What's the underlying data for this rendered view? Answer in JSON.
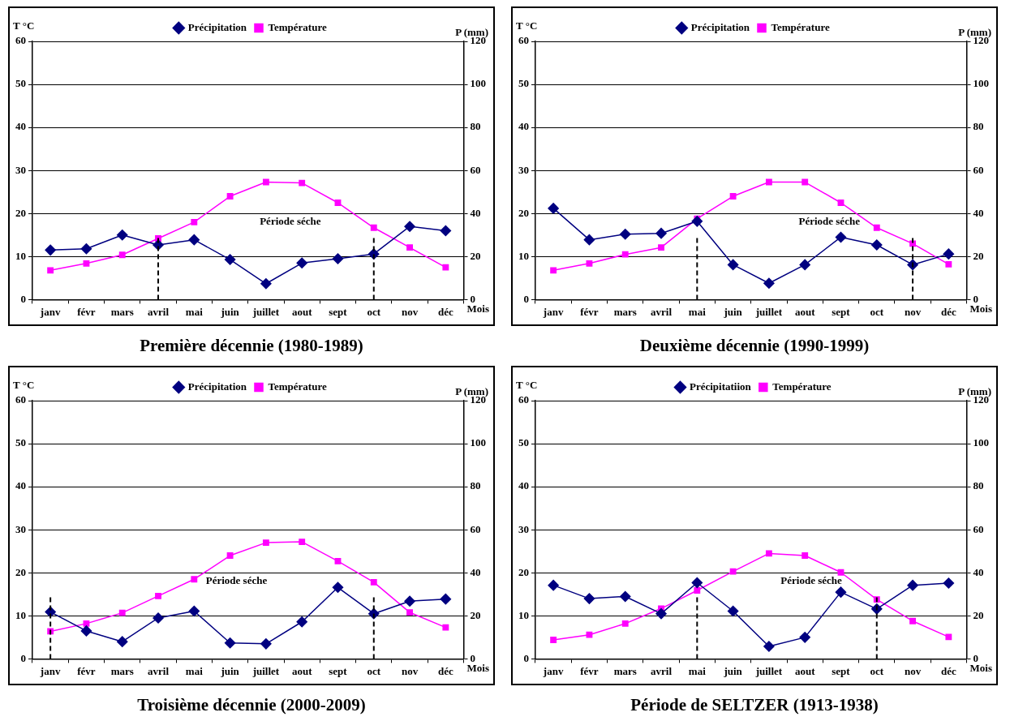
{
  "chart_data": [
    {
      "type": "line",
      "title": "Première décennie (1980-1989)",
      "xlabel": "Mois",
      "ylabel": "T °C",
      "y2label": "P (mm)",
      "categories": [
        "janv",
        "févr",
        "mars",
        "avril",
        "mai",
        "juin",
        "juillet",
        "aout",
        "sept",
        "oct",
        "nov",
        "déc"
      ],
      "series": [
        {
          "name": "Température",
          "color": "#ff00ff",
          "marker": "square",
          "values": [
            6.8,
            8.4,
            10.4,
            14.2,
            18,
            24,
            27.3,
            27.1,
            22.5,
            16.7,
            12.1,
            7.5
          ]
        },
        {
          "name": "Précipitation",
          "color": "#000080",
          "marker": "diamond",
          "axis": "y2",
          "values": [
            23,
            23.6,
            30,
            25.4,
            27.8,
            18.6,
            7.4,
            17,
            19,
            21.2,
            34,
            32
          ]
        }
      ],
      "ylim": [
        0,
        60
      ],
      "yticks": [
        0,
        10,
        20,
        30,
        40,
        50,
        60
      ],
      "y2lim": [
        0,
        120
      ],
      "y2ticks": [
        0,
        20,
        40,
        60,
        80,
        100,
        120
      ],
      "ref_lines": [
        {
          "axis": "x",
          "value": "avril",
          "line_style": "dashed"
        },
        {
          "axis": "x",
          "value": "oct",
          "line_style": "dashed"
        }
      ],
      "annotations": [
        "Période séche"
      ],
      "grid": "y",
      "legend": "top"
    },
    {
      "type": "line",
      "title": "Deuxième décennie (1990-1999)",
      "xlabel": "Mois",
      "ylabel": "T °C",
      "y2label": "P (mm)",
      "categories": [
        "janv",
        "févr",
        "mars",
        "avril",
        "mai",
        "juin",
        "juillet",
        "aout",
        "sept",
        "oct",
        "nov",
        "déc"
      ],
      "series": [
        {
          "name": "Température",
          "color": "#ff00ff",
          "marker": "square",
          "values": [
            6.8,
            8.4,
            10.5,
            12.1,
            18.8,
            24,
            27.3,
            27.3,
            22.5,
            16.7,
            13,
            8.2
          ]
        },
        {
          "name": "Précipitation",
          "color": "#000080",
          "marker": "diamond",
          "axis": "y2",
          "values": [
            42.4,
            27.8,
            30.4,
            30.8,
            36.4,
            16.2,
            7.6,
            16.2,
            29,
            25.4,
            16.2,
            21.2
          ]
        }
      ],
      "ylim": [
        0,
        60
      ],
      "yticks": [
        0,
        10,
        20,
        30,
        40,
        50,
        60
      ],
      "y2lim": [
        0,
        120
      ],
      "y2ticks": [
        0,
        20,
        40,
        60,
        80,
        100,
        120
      ],
      "ref_lines": [
        {
          "axis": "x",
          "value": "mai",
          "line_style": "dashed"
        },
        {
          "axis": "x",
          "value": "nov",
          "line_style": "dashed"
        }
      ],
      "annotations": [
        "Période séche"
      ],
      "grid": "y",
      "legend": "top"
    },
    {
      "type": "line",
      "title": "Troisième décennie (2000-2009)",
      "xlabel": "Mois",
      "ylabel": "T °C",
      "y2label": "P (mm)",
      "categories": [
        "janv",
        "févr",
        "mars",
        "avril",
        "mai",
        "juin",
        "juillet",
        "aout",
        "sept",
        "oct",
        "nov",
        "déc"
      ],
      "series": [
        {
          "name": "Température",
          "color": "#ff00ff",
          "marker": "square",
          "values": [
            6.4,
            8.2,
            10.7,
            14.6,
            18.5,
            24,
            27,
            27.2,
            22.7,
            17.8,
            10.8,
            7.3
          ]
        },
        {
          "name": "Précipitation",
          "color": "#000080",
          "marker": "diamond",
          "axis": "y2",
          "values": [
            21.8,
            13,
            8,
            19,
            22.2,
            7.4,
            7,
            17.2,
            33.2,
            21,
            26.8,
            27.8
          ]
        }
      ],
      "ylim": [
        0,
        60
      ],
      "yticks": [
        0,
        10,
        20,
        30,
        40,
        50,
        60
      ],
      "y2lim": [
        0,
        120
      ],
      "y2ticks": [
        0,
        20,
        40,
        60,
        80,
        100,
        120
      ],
      "ref_lines": [
        {
          "axis": "x",
          "value": "janv",
          "line_style": "dashed"
        },
        {
          "axis": "x",
          "value": "oct",
          "line_style": "dashed"
        }
      ],
      "annotations": [
        "Période séche"
      ],
      "grid": "y",
      "legend": "top"
    },
    {
      "type": "line",
      "title": "Période de SELTZER (1913-1938)",
      "xlabel": "Mois",
      "ylabel": "T °C",
      "y2label": "P (mm)",
      "categories": [
        "janv",
        "févr",
        "mars",
        "avril",
        "mai",
        "juin",
        "juillet",
        "aout",
        "sept",
        "oct",
        "nov",
        "déc"
      ],
      "series": [
        {
          "name": "Température",
          "color": "#ff00ff",
          "marker": "square",
          "values": [
            4.4,
            5.6,
            8.2,
            11.7,
            15.9,
            20.3,
            24.5,
            24,
            20.1,
            13.8,
            8.8,
            5.1
          ]
        },
        {
          "name": "Précipitatiion",
          "color": "#000080",
          "marker": "diamond",
          "axis": "y2",
          "values": [
            34.2,
            28,
            29,
            21,
            35.4,
            22.2,
            5.8,
            10,
            31,
            23.2,
            34.2,
            35.2
          ]
        }
      ],
      "ylim": [
        0,
        60
      ],
      "yticks": [
        0,
        10,
        20,
        30,
        40,
        50,
        60
      ],
      "y2lim": [
        0,
        120
      ],
      "y2ticks": [
        0,
        20,
        40,
        60,
        80,
        100,
        120
      ],
      "ref_lines": [
        {
          "axis": "x",
          "value": "mai",
          "line_style": "dashed"
        },
        {
          "axis": "x",
          "value": "oct",
          "line_style": "dashed"
        }
      ],
      "annotations": [
        "Période séche"
      ],
      "grid": "y",
      "legend": "top"
    }
  ]
}
